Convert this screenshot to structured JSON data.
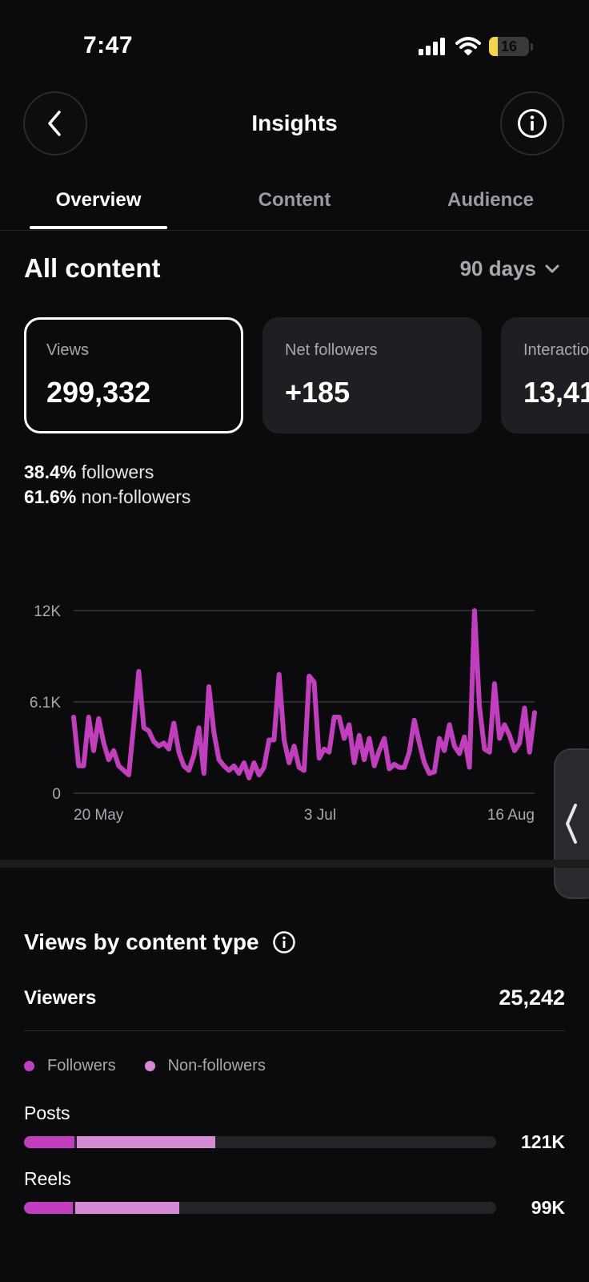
{
  "status_bar": {
    "time": "7:47",
    "battery": "16"
  },
  "header": {
    "title": "Insights"
  },
  "tabs": [
    {
      "label": "Overview",
      "active": true
    },
    {
      "label": "Content",
      "active": false
    },
    {
      "label": "Audience",
      "active": false
    }
  ],
  "overview": {
    "section_title": "All content",
    "range": "90 days"
  },
  "cards": [
    {
      "label": "Views",
      "value": "299,332",
      "selected": true
    },
    {
      "label": "Net followers",
      "value": "+185",
      "selected": false
    },
    {
      "label": "Interactions",
      "value": "13,41",
      "selected": false
    }
  ],
  "split": {
    "followers_pct": "38.4%",
    "followers_label": "followers",
    "non_followers_pct": "61.6%",
    "non_followers_label": "non-followers"
  },
  "chart_data": {
    "type": "line",
    "title": "",
    "y_ticks": [
      "12K",
      "6.1K",
      "0"
    ],
    "ylim": [
      0,
      12000
    ],
    "x_tick_labels": [
      "20 May",
      "3 Jul",
      "16 Aug"
    ],
    "grid": true,
    "color": "#c13fbd",
    "series": [
      {
        "values": [
          5000,
          1800,
          1800,
          5000,
          2800,
          4900,
          3300,
          2200,
          2800,
          1800,
          1500,
          1200,
          4500,
          8000,
          4300,
          4100,
          3400,
          3100,
          3300,
          2900,
          4600,
          2700,
          1800,
          1500,
          2500,
          4300,
          1300,
          7000,
          4000,
          2200,
          1800,
          1500,
          1800,
          1300,
          2000,
          1000,
          2000,
          1200,
          1700,
          3500,
          3500,
          7800,
          3500,
          2000,
          3100,
          1700,
          1500,
          7700,
          7300,
          2300,
          2900,
          2700,
          5000,
          5000,
          3600,
          4500,
          2000,
          3800,
          2200,
          3600,
          1800,
          2800,
          3600,
          1600,
          1900,
          1700,
          1700,
          2700,
          4800,
          3300,
          2000,
          1300,
          1400,
          3600,
          2800,
          4500,
          3100,
          2600,
          3700,
          1700,
          12000,
          5700,
          2900,
          2700,
          7200,
          3600,
          4500,
          3800,
          2800,
          3300,
          5600,
          2700,
          5300
        ]
      }
    ]
  },
  "content_type": {
    "title": "Views by content type",
    "viewers_label": "Viewers",
    "viewers_value": "25,242",
    "legend": {
      "followers": "Followers",
      "non_followers": "Non-followers"
    },
    "colors": {
      "followers": "#c13fbd",
      "non_followers": "#d58bd3",
      "track": "#242428"
    },
    "rows": [
      {
        "label": "Posts",
        "value": "121K",
        "followers_fraction": 0.107,
        "non_followers_fraction": 0.298
      },
      {
        "label": "Reels",
        "value": "99K",
        "followers_fraction": 0.103,
        "non_followers_fraction": 0.225
      }
    ]
  }
}
